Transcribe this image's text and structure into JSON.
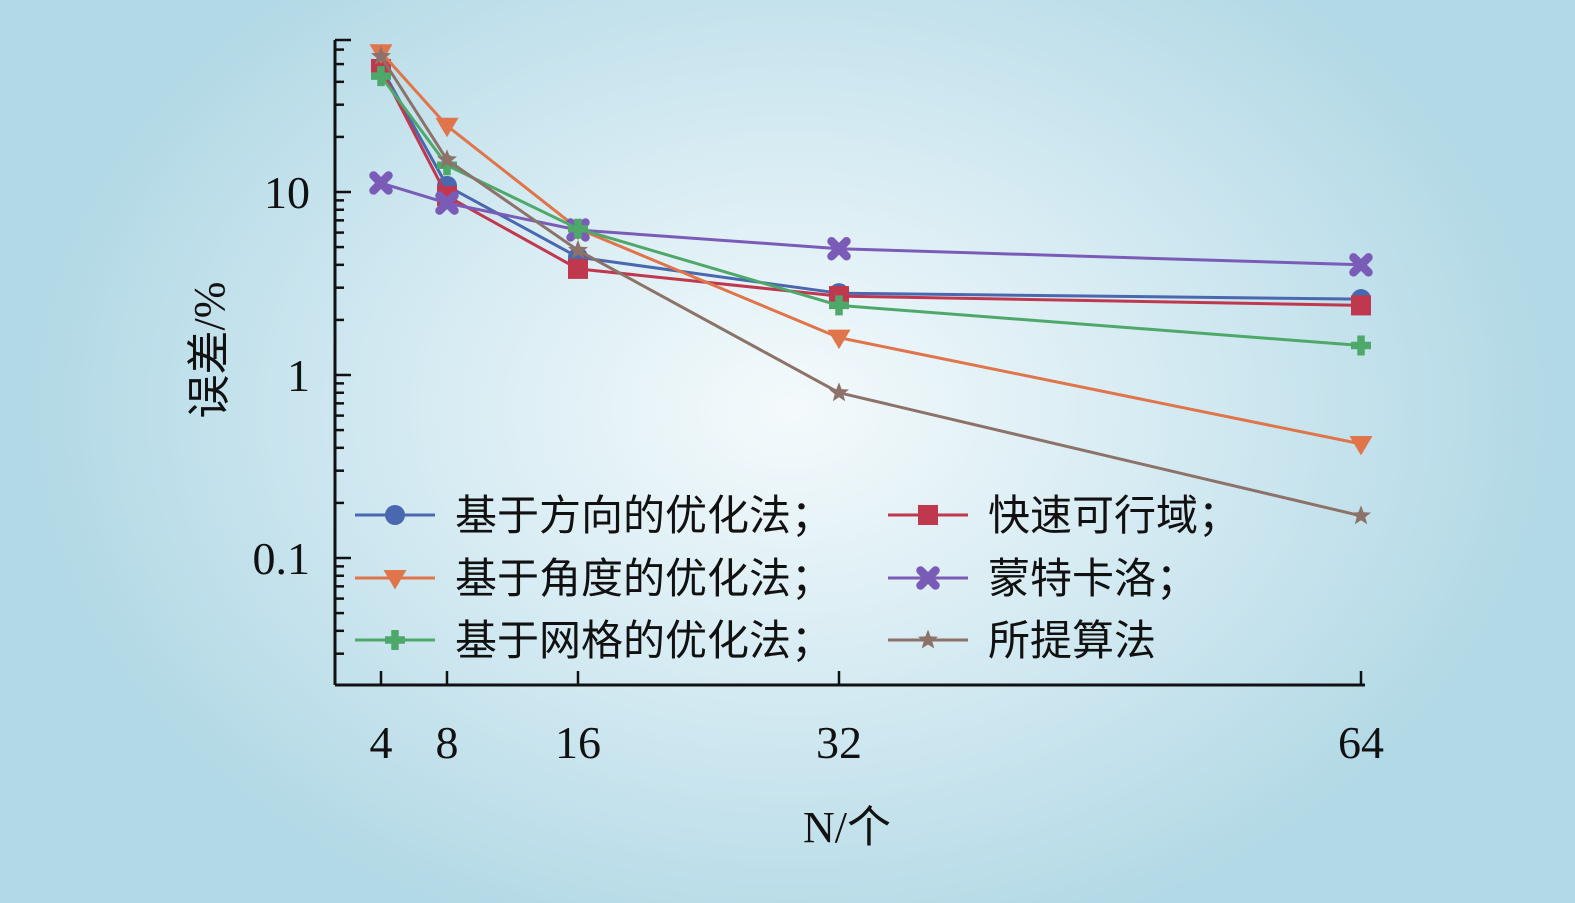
{
  "chart_data": {
    "type": "line",
    "xlabel": "N/个",
    "ylabel": "误差/%",
    "x": [
      4,
      8,
      16,
      32,
      64
    ],
    "x_tick_labels": [
      "4",
      "8",
      "16",
      "32",
      "64"
    ],
    "y_scale": "log",
    "ylim": [
      0.02,
      70
    ],
    "y_tick_labels": [
      {
        "value": 10,
        "label": "10"
      },
      {
        "value": 1,
        "label": "1"
      },
      {
        "value": 0.1,
        "label": "0.1"
      }
    ],
    "grid": false,
    "legend_position": "lower-left",
    "series": [
      {
        "name": "基于方向的优化法；",
        "color": "#4a68b0",
        "marker": "circle",
        "values": [
          48,
          10.8,
          4.4,
          2.8,
          2.6
        ]
      },
      {
        "name": "快速可行域；",
        "color": "#c0384e",
        "marker": "square",
        "values": [
          47,
          9.5,
          3.8,
          2.7,
          2.4
        ]
      },
      {
        "name": "基于角度的优化法；",
        "color": "#e0744a",
        "marker": "triangle-down",
        "values": [
          58,
          23,
          6.3,
          1.6,
          0.42
        ]
      },
      {
        "name": "蒙特卡洛；",
        "color": "#7a5cb8",
        "marker": "x",
        "values": [
          11.2,
          8.7,
          6.2,
          4.9,
          4.0
        ]
      },
      {
        "name": "基于网格的优化法；",
        "color": "#4ea86a",
        "marker": "plus",
        "values": [
          43,
          14,
          6.3,
          2.4,
          1.45
        ]
      },
      {
        "name": "所提算法",
        "color": "#8c7268",
        "marker": "star",
        "values": [
          55,
          15,
          4.8,
          0.8,
          0.17
        ]
      }
    ]
  }
}
